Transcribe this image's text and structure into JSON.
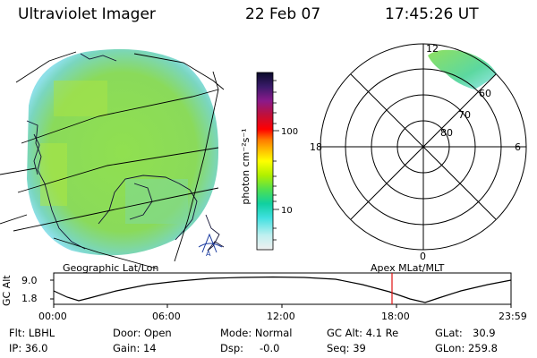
{
  "header": {
    "instrument": "Ultraviolet Imager",
    "date": "22 Feb 07",
    "time": "17:45:26 UT"
  },
  "colorbar": {
    "unit": "photon cm⁻²s⁻¹",
    "ticks": [
      "100",
      "10"
    ],
    "colors": [
      "#0a0a2a",
      "#3a1a6a",
      "#8a1a8a",
      "#c0103a",
      "#ff0000",
      "#ff7a00",
      "#ffc000",
      "#ffff00",
      "#b0f000",
      "#50e050",
      "#10d0a0",
      "#40e0e0",
      "#c0f0f0",
      "#f0f0f0"
    ]
  },
  "map_panel": {
    "caption": "Geographic Lat/Lon",
    "fill_color": "#8ee060",
    "edge_color": "#7ad6d6",
    "logo": "A"
  },
  "polar_panel": {
    "caption": "Apex MLat/MLT",
    "mlt_labels": {
      "top": "12",
      "left": "18",
      "right": "6",
      "bottom": "0"
    },
    "mlat_labels": [
      "60",
      "70",
      "80"
    ]
  },
  "timeline": {
    "axis_label": "GC Alt",
    "y_ticks": [
      "9.0",
      "1.8"
    ],
    "x_ticks": [
      "00:00",
      "06:00",
      "12:00",
      "18:00",
      "23:59"
    ],
    "marker_color": "#e01010"
  },
  "info": {
    "filter_label": "Flt: LBHL",
    "ip_label": "IP: 36.0",
    "door_label": "Door: Open",
    "gain_label": "Gain: 14",
    "mode_label": "Mode: Normal",
    "dsp_label": "Dsp:",
    "dsp_value": "-0.0",
    "gcalt_label": "GC Alt: 4.1 Re",
    "seq_label": "Seq: 39",
    "glat_label": "GLat:",
    "glat_value": "30.9",
    "glon_label": "GLon: 259.8"
  }
}
